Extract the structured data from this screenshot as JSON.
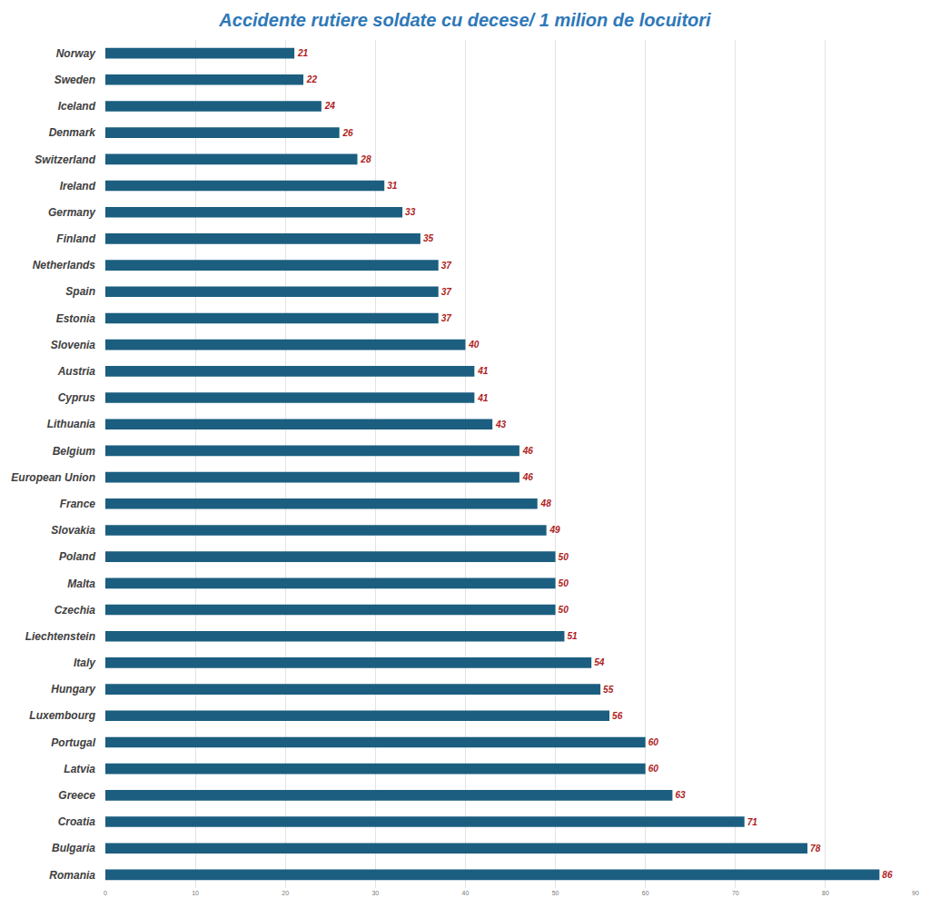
{
  "chart_data": {
    "type": "bar",
    "title": "Accidente rutiere soldate cu decese/ 1 milion de locuitori",
    "orientation": "horizontal",
    "categories": [
      "Norway",
      "Sweden",
      "Iceland",
      "Denmark",
      "Switzerland",
      "Ireland",
      "Germany",
      "Finland",
      "Netherlands",
      "Spain",
      "Estonia",
      "Slovenia",
      "Austria",
      "Cyprus",
      "Lithuania",
      "Belgium",
      "European Union",
      "France",
      "Slovakia",
      "Poland",
      "Malta",
      "Czechia",
      "Liechtenstein",
      "Italy",
      "Hungary",
      "Luxembourg",
      "Portugal",
      "Latvia",
      "Greece",
      "Croatia",
      "Bulgaria",
      "Romania"
    ],
    "values": [
      21,
      22,
      24,
      26,
      28,
      31,
      33,
      35,
      37,
      37,
      37,
      40,
      41,
      41,
      43,
      46,
      46,
      48,
      49,
      50,
      50,
      50,
      51,
      54,
      55,
      56,
      60,
      60,
      63,
      71,
      78,
      86
    ],
    "color": "#1b5e80",
    "xlim": [
      0,
      90
    ],
    "xticks": [
      0,
      10,
      20,
      30,
      40,
      50,
      60,
      70,
      80,
      90
    ],
    "grid": true,
    "data_labels": true
  }
}
